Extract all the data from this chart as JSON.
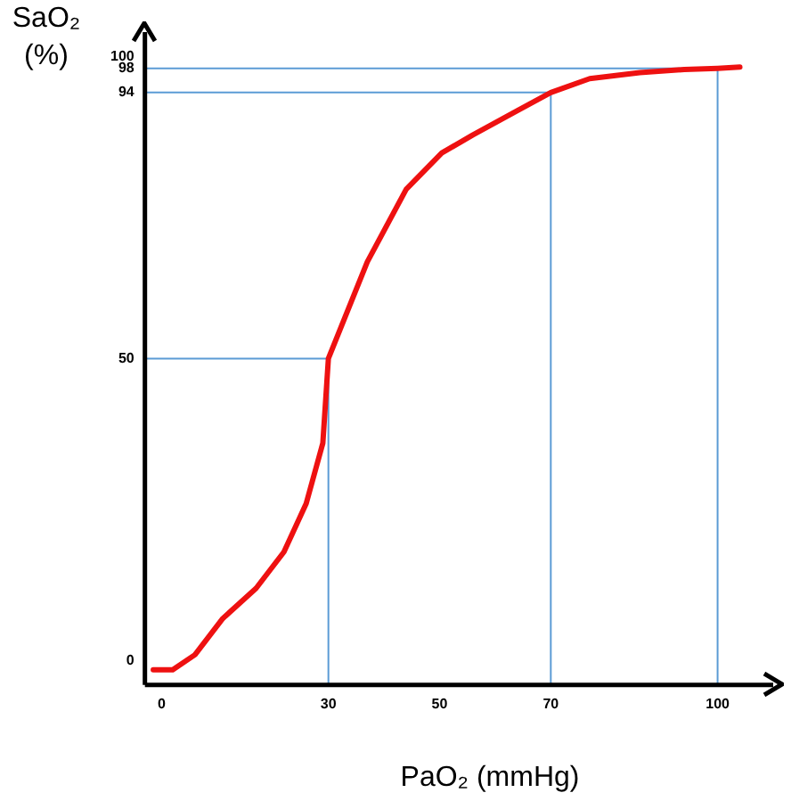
{
  "chart_data": {
    "type": "line",
    "xlabel": "PaO₂ (mmHg)",
    "ylabel": "SaO₂\n(%)",
    "xlim": [
      -3,
      110
    ],
    "xticks": [
      0,
      30,
      50,
      70,
      100
    ],
    "ylim": [
      -4,
      104
    ],
    "yticks": [
      0,
      50,
      94,
      98,
      100
    ],
    "grid": false,
    "legend": false,
    "marker": "none",
    "line_style": "solid",
    "series": [
      {
        "color": "#ee1111",
        "x": [
          -1.5,
          2,
          6,
          11,
          17,
          22,
          26,
          29,
          30,
          37,
          44,
          50.4,
          56,
          64,
          70,
          77,
          86,
          94,
          100,
          104
        ],
        "values": [
          -1.5,
          -1.5,
          1,
          7,
          12,
          18,
          26,
          36,
          50,
          66,
          78,
          84,
          87,
          91,
          94,
          96.3,
          97.3,
          97.8,
          98,
          98.2
        ]
      }
    ],
    "ref_lines": [
      {
        "axis": "y",
        "value": 50,
        "color": "#5b9bd5"
      },
      {
        "axis": "x",
        "value": 30,
        "color": "#5b9bd5"
      },
      {
        "axis": "y",
        "value": 94,
        "color": "#5b9bd5"
      },
      {
        "axis": "x",
        "value": 70,
        "color": "#5b9bd5"
      },
      {
        "axis": "y",
        "value": 98,
        "color": "#5b9bd5"
      },
      {
        "axis": "x",
        "value": 100,
        "color": "#5b9bd5"
      }
    ]
  }
}
